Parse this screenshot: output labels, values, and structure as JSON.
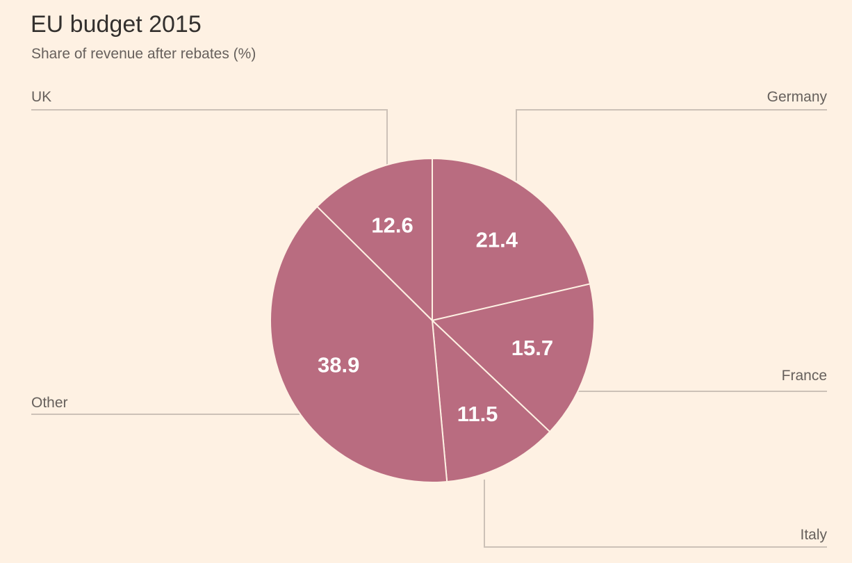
{
  "chart_data": {
    "type": "pie",
    "title": "EU budget 2015",
    "subtitle": "Share of revenue after rebates (%)",
    "slices": [
      {
        "label": "Germany",
        "value": 21.4
      },
      {
        "label": "France",
        "value": 15.7
      },
      {
        "label": "Italy",
        "value": 11.5
      },
      {
        "label": "Other",
        "value": 38.9
      },
      {
        "label": "UK",
        "value": 12.6
      }
    ],
    "start_angle_deg": 0,
    "direction": "clockwise",
    "colors": {
      "slice_fill": "#b96c80",
      "slice_border": "#fef1e3",
      "leader_line": "#ccc1b7",
      "label_text": "#66605c",
      "value_text": "#ffffff",
      "background": "#fef1e3"
    }
  }
}
